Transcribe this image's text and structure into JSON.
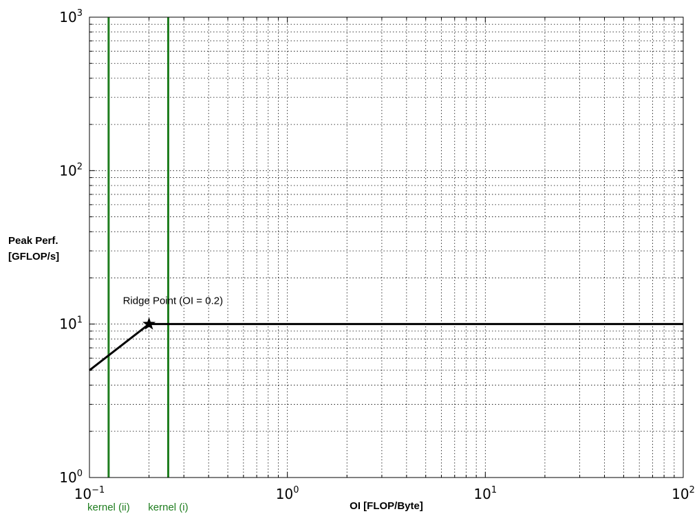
{
  "chart_data": {
    "type": "line",
    "title": "",
    "xlabel": "OI [FLOP/Byte]",
    "ylabel_lines": [
      "Peak Perf.",
      "[GFLOP/s]"
    ],
    "xscale": "log",
    "yscale": "log",
    "xlim": [
      0.1,
      100
    ],
    "ylim": [
      1,
      1000
    ],
    "grid": true,
    "legend": "none",
    "x_ticks": [
      {
        "value": 0.1,
        "base": "10",
        "exp": "−1"
      },
      {
        "value": 1,
        "base": "10",
        "exp": "0"
      },
      {
        "value": 10,
        "base": "10",
        "exp": "1"
      },
      {
        "value": 100,
        "base": "10",
        "exp": "2"
      }
    ],
    "y_ticks": [
      {
        "value": 1,
        "base": "10",
        "exp": "0"
      },
      {
        "value": 10,
        "base": "10",
        "exp": "1"
      },
      {
        "value": 100,
        "base": "10",
        "exp": "2"
      },
      {
        "value": 1000,
        "base": "10",
        "exp": "3"
      }
    ],
    "series": [
      {
        "color": "#000000",
        "x": [
          0.1,
          0.2,
          100
        ],
        "y": [
          5,
          10,
          10
        ]
      }
    ],
    "ridge_point": {
      "x": 0.2,
      "y": 10,
      "label": "Ridge Point (OI = 0.2)"
    },
    "kernels": [
      {
        "x": 0.125,
        "label": "kernel (ii)",
        "color": "#1e7d1e"
      },
      {
        "x": 0.25,
        "label": "kernel (i)",
        "color": "#1e7d1e"
      }
    ]
  }
}
